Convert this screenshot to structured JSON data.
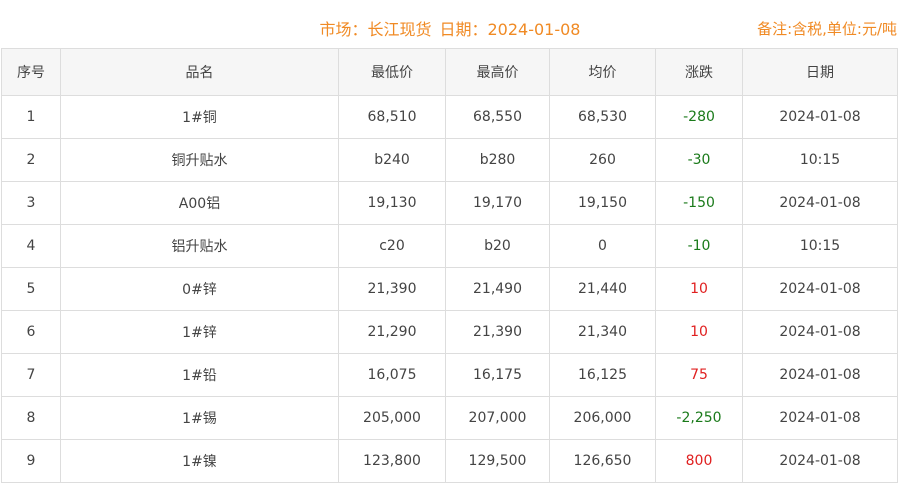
{
  "header": {
    "market": "市场：长江现货",
    "date": "日期：2024-01-08",
    "note": "备注:含税,单位:元/吨"
  },
  "columns": [
    "序号",
    "品名",
    "最低价",
    "最高价",
    "均价",
    "涨跌",
    "日期"
  ],
  "colors": {
    "accent": "#f08a24",
    "down": "#1a7a1a",
    "up": "#e02020"
  },
  "rows": [
    [
      "1",
      "1#铜",
      "68,510",
      "68,550",
      "68,530",
      "-280",
      "2024-01-08"
    ],
    [
      "2",
      "铜升贴水",
      "b240",
      "b280",
      "260",
      "-30",
      "10:15"
    ],
    [
      "3",
      "A00铝",
      "19,130",
      "19,170",
      "19,150",
      "-150",
      "2024-01-08"
    ],
    [
      "4",
      "铝升贴水",
      "c20",
      "b20",
      "0",
      "-10",
      "10:15"
    ],
    [
      "5",
      "0#锌",
      "21,390",
      "21,490",
      "21,440",
      "10",
      "2024-01-08"
    ],
    [
      "6",
      "1#锌",
      "21,290",
      "21,390",
      "21,340",
      "10",
      "2024-01-08"
    ],
    [
      "7",
      "1#铅",
      "16,075",
      "16,175",
      "16,125",
      "75",
      "2024-01-08"
    ],
    [
      "8",
      "1#锡",
      "205,000",
      "207,000",
      "206,000",
      "-2,250",
      "2024-01-08"
    ],
    [
      "9",
      "1#镍",
      "123,800",
      "129,500",
      "126,650",
      "800",
      "2024-01-08"
    ]
  ]
}
